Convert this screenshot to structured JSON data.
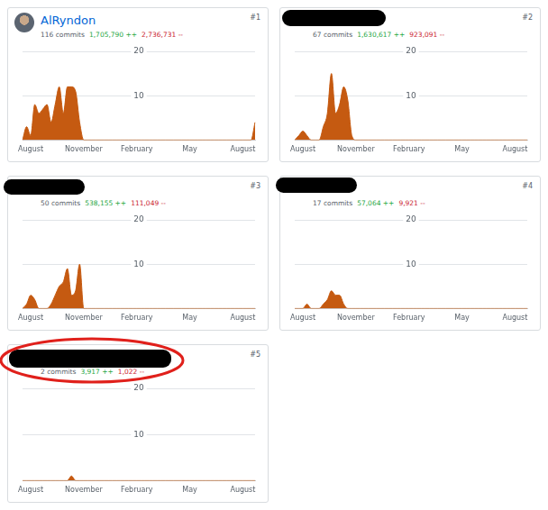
{
  "chart_data": [
    {
      "type": "area",
      "title": "AlRyndon",
      "rank": "#1",
      "commits": "116 commits",
      "additions": "1,705,790 ++",
      "deletions": "2,736,731 --",
      "categories": [
        null,
        null,
        "August",
        null,
        null,
        null,
        null,
        null,
        null,
        null,
        null,
        null,
        null,
        null,
        null,
        "November",
        null,
        null,
        null,
        null,
        null,
        null,
        null,
        null,
        null,
        null,
        null,
        null,
        "February",
        null,
        null,
        null,
        null,
        null,
        null,
        null,
        null,
        null,
        null,
        null,
        null,
        "May",
        null,
        null,
        null,
        null,
        null,
        null,
        null,
        null,
        null,
        null,
        null,
        null,
        "August",
        null,
        null,
        null
      ],
      "values": [
        0,
        3,
        1,
        8,
        6,
        7,
        8,
        4,
        8,
        12,
        6,
        12,
        12,
        11,
        4,
        0,
        0,
        0,
        0,
        0,
        0,
        0,
        0,
        0,
        0,
        0,
        0,
        0,
        0,
        0,
        0,
        0,
        0,
        0,
        0,
        0,
        0,
        0,
        0,
        0,
        0,
        0,
        0,
        0,
        0,
        0,
        0,
        0,
        0,
        0,
        0,
        0,
        0,
        0,
        0,
        0,
        0,
        4
      ],
      "color": "#c55a11",
      "ylim": [
        0,
        20
      ],
      "yticks": [
        10,
        20
      ],
      "grid": true
    },
    {
      "type": "area",
      "rank": "#2",
      "commits": "67 commits",
      "additions": "1,630,617 ++",
      "deletions": "923,091 --",
      "categories": [
        null,
        null,
        "August",
        null,
        null,
        null,
        null,
        null,
        null,
        null,
        null,
        null,
        null,
        null,
        null,
        "November",
        null,
        null,
        null,
        null,
        null,
        null,
        null,
        null,
        null,
        null,
        null,
        null,
        "February",
        null,
        null,
        null,
        null,
        null,
        null,
        null,
        null,
        null,
        null,
        null,
        null,
        "May",
        null,
        null,
        null,
        null,
        null,
        null,
        null,
        null,
        null,
        null,
        null,
        null,
        "August",
        null,
        null,
        null
      ],
      "values": [
        0,
        1,
        2,
        1,
        0,
        0,
        0,
        3,
        6,
        15,
        6,
        8,
        12,
        9,
        1,
        0,
        0,
        0,
        0,
        0,
        0,
        0,
        0,
        0,
        0,
        0,
        0,
        0,
        0,
        0,
        0,
        0,
        0,
        0,
        0,
        0,
        0,
        0,
        0,
        0,
        0,
        0,
        0,
        0,
        0,
        0,
        0,
        0,
        0,
        0,
        0,
        0,
        0,
        0,
        0,
        0,
        0,
        0
      ],
      "color": "#c55a11",
      "ylim": [
        0,
        20
      ],
      "yticks": [
        10,
        20
      ],
      "grid": true
    },
    {
      "type": "area",
      "rank": "#3",
      "commits": "50 commits",
      "additions": "538,155 ++",
      "deletions": "111,049 --",
      "categories": [
        null,
        null,
        "August",
        null,
        null,
        null,
        null,
        null,
        null,
        null,
        null,
        null,
        null,
        null,
        null,
        "November",
        null,
        null,
        null,
        null,
        null,
        null,
        null,
        null,
        null,
        null,
        null,
        null,
        "February",
        null,
        null,
        null,
        null,
        null,
        null,
        null,
        null,
        null,
        null,
        null,
        null,
        "May",
        null,
        null,
        null,
        null,
        null,
        null,
        null,
        null,
        null,
        null,
        null,
        null,
        "August",
        null,
        null,
        null
      ],
      "values": [
        0,
        1,
        3,
        2,
        0,
        0,
        0,
        1,
        3,
        5,
        6,
        9,
        3,
        4,
        10,
        0,
        0,
        0,
        0,
        0,
        0,
        0,
        0,
        0,
        0,
        0,
        0,
        0,
        0,
        0,
        0,
        0,
        0,
        0,
        0,
        0,
        0,
        0,
        0,
        0,
        0,
        0,
        0,
        0,
        0,
        0,
        0,
        0,
        0,
        0,
        0,
        0,
        0,
        0,
        0,
        0,
        0,
        0
      ],
      "color": "#c55a11",
      "ylim": [
        0,
        20
      ],
      "yticks": [
        10,
        20
      ],
      "grid": true
    },
    {
      "type": "area",
      "rank": "#4",
      "commits": "17 commits",
      "additions": "57,064 ++",
      "deletions": "9,921 --",
      "categories": [
        null,
        null,
        "August",
        null,
        null,
        null,
        null,
        null,
        null,
        null,
        null,
        null,
        null,
        null,
        null,
        "November",
        null,
        null,
        null,
        null,
        null,
        null,
        null,
        null,
        null,
        null,
        null,
        null,
        "February",
        null,
        null,
        null,
        null,
        null,
        null,
        null,
        null,
        null,
        null,
        null,
        null,
        "May",
        null,
        null,
        null,
        null,
        null,
        null,
        null,
        null,
        null,
        null,
        null,
        null,
        "August",
        null,
        null,
        null
      ],
      "values": [
        0,
        0,
        0,
        1,
        0,
        0,
        0,
        1,
        2,
        4,
        3,
        3,
        1,
        0,
        0,
        0,
        0,
        0,
        0,
        0,
        0,
        0,
        0,
        0,
        0,
        0,
        0,
        0,
        0,
        0,
        0,
        0,
        0,
        0,
        0,
        0,
        0,
        0,
        0,
        0,
        0,
        0,
        0,
        0,
        0,
        0,
        0,
        0,
        0,
        0,
        0,
        0,
        0,
        0,
        0,
        0,
        0,
        0
      ],
      "color": "#c55a11",
      "ylim": [
        0,
        20
      ],
      "yticks": [
        10,
        20
      ],
      "grid": true
    },
    {
      "type": "area",
      "rank": "#5",
      "commits": "2 commits",
      "additions": "3,917 ++",
      "deletions": "1,022 --",
      "categories": [
        null,
        null,
        "August",
        null,
        null,
        null,
        null,
        null,
        null,
        null,
        null,
        null,
        null,
        null,
        null,
        "November",
        null,
        null,
        null,
        null,
        null,
        null,
        null,
        null,
        null,
        null,
        null,
        null,
        "February",
        null,
        null,
        null,
        null,
        null,
        null,
        null,
        null,
        null,
        null,
        null,
        null,
        "May",
        null,
        null,
        null,
        null,
        null,
        null,
        null,
        null,
        null,
        null,
        null,
        null,
        "August",
        null,
        null,
        null
      ],
      "values": [
        0,
        0,
        0,
        0,
        0,
        0,
        0,
        0,
        0,
        0,
        0,
        0,
        1,
        0,
        0,
        0,
        0,
        0,
        0,
        0,
        0,
        0,
        0,
        0,
        0,
        0,
        0,
        0,
        0,
        0,
        0,
        0,
        0,
        0,
        0,
        0,
        0,
        0,
        0,
        0,
        0,
        0,
        0,
        0,
        0,
        0,
        0,
        0,
        0,
        0,
        0,
        0,
        0,
        0,
        0,
        0,
        0,
        0
      ],
      "color": "#c55a11",
      "ylim": [
        0,
        20
      ],
      "yticks": [
        10,
        20
      ],
      "grid": true
    }
  ]
}
